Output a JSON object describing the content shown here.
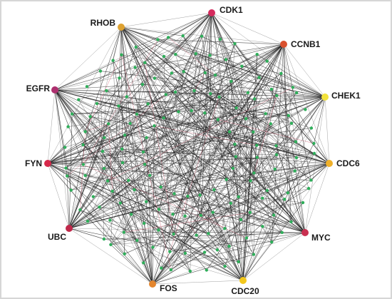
{
  "nodes": [
    {
      "label": "CDK1",
      "color": "#d42a5c"
    },
    {
      "label": "CCNB1",
      "color": "#d9502e"
    },
    {
      "label": "CHEK1",
      "color": "#f2e23c"
    },
    {
      "label": "CDC6",
      "color": "#efb02a"
    },
    {
      "label": "MYC",
      "color": "#c92f50"
    },
    {
      "label": "CDC20",
      "color": "#f3c81c"
    },
    {
      "label": "FOS",
      "color": "#e4862e"
    },
    {
      "label": "UBC",
      "color": "#c0284a"
    },
    {
      "label": "FYN",
      "color": "#d6284a"
    },
    {
      "label": "EGFR",
      "color": "#ad2f6e"
    },
    {
      "label": "RHOB",
      "color": "#dea232"
    }
  ]
}
